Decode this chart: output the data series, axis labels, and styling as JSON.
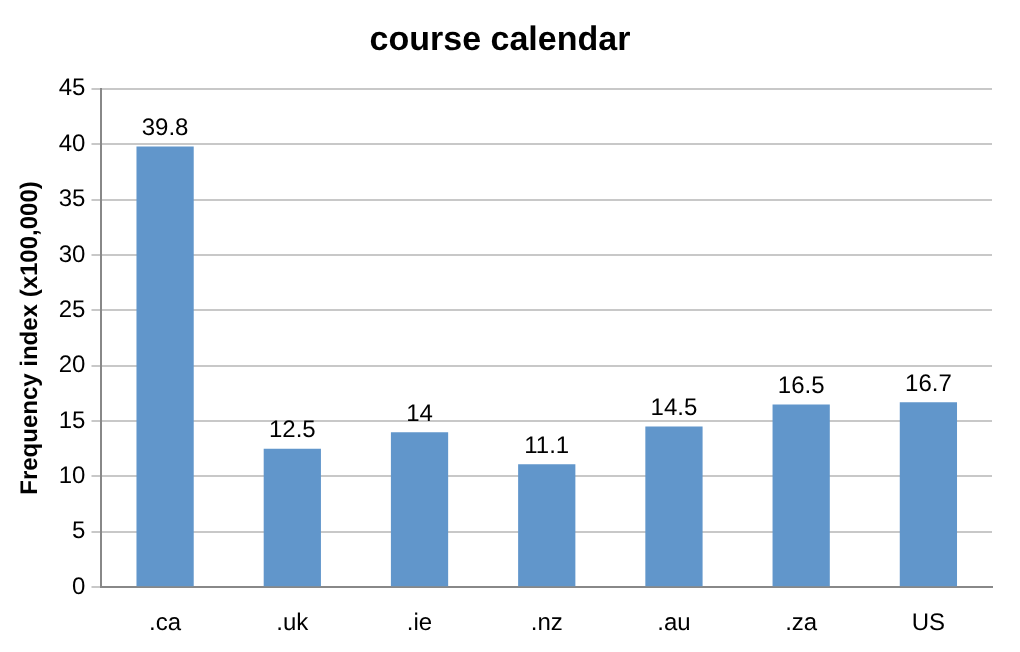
{
  "chart_data": {
    "type": "bar",
    "title": "course calendar",
    "ylabel": "Frequency index (x100,000)",
    "categories": [
      ".ca",
      ".uk",
      ".ie",
      ".nz",
      ".au",
      ".za",
      "US"
    ],
    "values": [
      39.8,
      12.5,
      14,
      11.1,
      14.5,
      16.5,
      16.7
    ],
    "color": "#6196cb",
    "ylim": [
      0,
      45
    ],
    "yticks": [
      0,
      5,
      10,
      15,
      20,
      25,
      30,
      35,
      40,
      45
    ],
    "grid": "y",
    "data_labels": true,
    "legend": false
  }
}
